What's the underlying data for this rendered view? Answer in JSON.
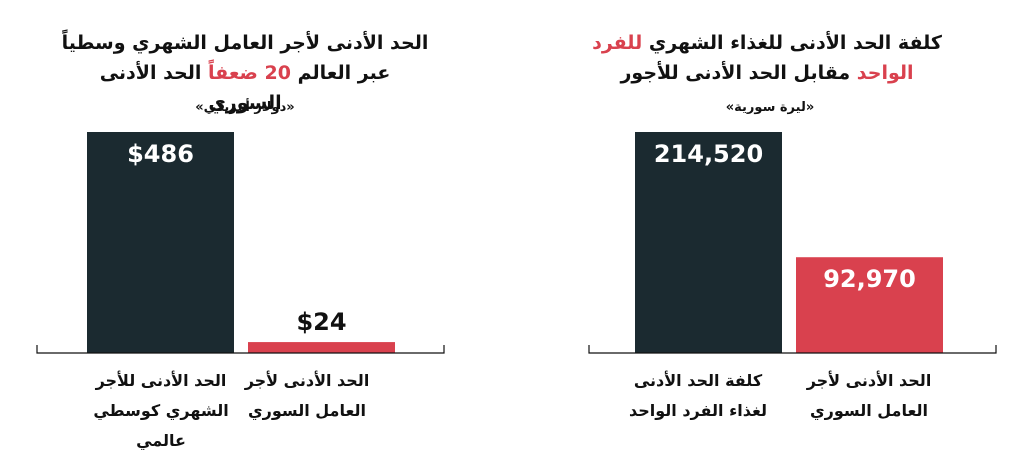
{
  "chart_data": [
    {
      "type": "bar",
      "title_parts": [
        "الحد الأدنى لأجر العامل الشهري وسطياً عبر العالم ",
        "20 ضعفاً",
        " الحد الأدنى السوري"
      ],
      "unit_label": "«دولار أمريكي»",
      "categories": [
        "الحد الأدنى للأجر الشهري كوسطي عالمي",
        "الحد الأدنى لأجر العامل السوري"
      ],
      "values": [
        486,
        24
      ],
      "value_labels": [
        "$486",
        "$24"
      ],
      "colors": [
        "#1b2a30",
        "#d9414e"
      ],
      "ylim": [
        0,
        486
      ]
    },
    {
      "type": "bar",
      "title_parts": [
        "كلفة الحد الأدنى للغذاء الشهري ",
        "للفرد الواحد",
        " مقابل الحد الأدنى للأجور"
      ],
      "unit_label": "«ليرة سورية»",
      "categories": [
        "كلفة الحد الأدنى لغذاء الفرد الواحد",
        "الحد الأدنى لأجر العامل السوري"
      ],
      "values": [
        214520,
        92970
      ],
      "value_labels": [
        "214,520",
        "92,970"
      ],
      "colors": [
        "#1b2a30",
        "#d9414e"
      ],
      "ylim": [
        0,
        214520
      ]
    }
  ]
}
